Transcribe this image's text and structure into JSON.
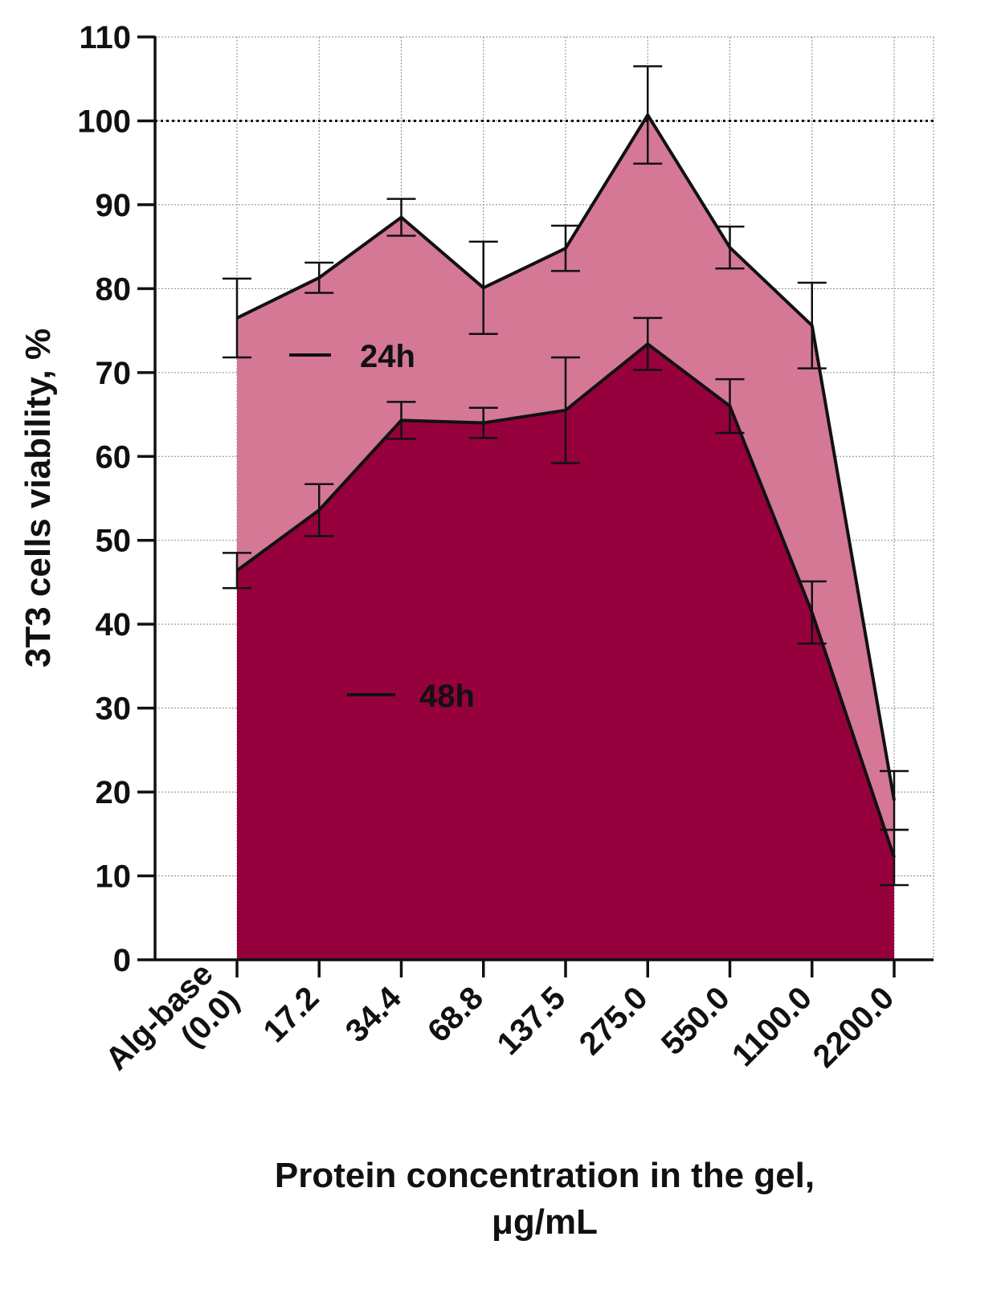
{
  "chart_data": {
    "type": "area",
    "categories": [
      "Alg-base\n(0.0)",
      "17.2",
      "34.4",
      "68.8",
      "137.5",
      "275.0",
      "550.0",
      "1100.0",
      "2200.0"
    ],
    "category_lines": [
      [
        "Alg-base",
        "(0.0)"
      ],
      [
        "17.2"
      ],
      [
        "34.4"
      ],
      [
        "68.8"
      ],
      [
        "137.5"
      ],
      [
        "275.0"
      ],
      [
        "550.0"
      ],
      [
        "1100.0"
      ],
      [
        "2200.0"
      ]
    ],
    "series": [
      {
        "name": "24h",
        "values": [
          76.5,
          81.3,
          88.5,
          80.1,
          84.8,
          100.7,
          84.9,
          75.6,
          19.0
        ],
        "errors": [
          4.7,
          1.8,
          2.2,
          5.5,
          2.7,
          5.8,
          2.5,
          5.1,
          3.5
        ],
        "color": "#d47896"
      },
      {
        "name": "48h",
        "values": [
          46.4,
          53.6,
          64.3,
          64.0,
          65.5,
          73.4,
          66.0,
          41.4,
          12.2
        ],
        "errors": [
          2.1,
          3.1,
          2.2,
          1.8,
          6.3,
          3.1,
          3.2,
          3.7,
          3.3
        ],
        "color": "#96003c"
      }
    ],
    "xlabel": "Protein concentration in the gel,\nμg/mL",
    "xlabel_lines": [
      "Protein concentration in the gel,",
      "μg/mL"
    ],
    "ylabel": "3T3 cells viability, %",
    "ylim": [
      0,
      110
    ],
    "yticks": [
      0,
      10,
      20,
      30,
      40,
      50,
      60,
      70,
      80,
      90,
      100,
      110
    ],
    "reference_line": 100,
    "grid": true,
    "legend_placement": "inside-left"
  }
}
